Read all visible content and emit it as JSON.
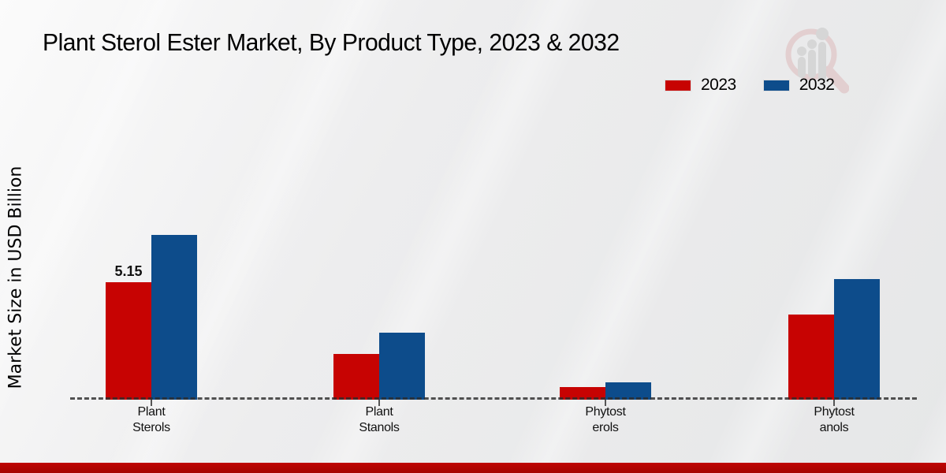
{
  "title": "Plant Sterol Ester Market, By Product Type, 2023 & 2032",
  "y_axis_label": "Market Size in USD Billion",
  "colors": {
    "bar_2023": "#c70302",
    "bar_2032": "#0d4c8b",
    "footer_accent": "#b00301",
    "baseline": "#2d2d2d",
    "watermark_pink": "#debaba",
    "watermark_gray": "#c6c6c6"
  },
  "watermark_icon": "magnifier-bar-chart-logo",
  "chart_data": {
    "type": "bar",
    "title": "Plant Sterol Ester Market, By Product Type, 2023 & 2032",
    "xlabel": "",
    "ylabel": "Market Size in USD Billion",
    "ylim": [
      0,
      8
    ],
    "grid": false,
    "legend_position": "top-right",
    "baseline_style": "dashed",
    "categories": [
      {
        "label": "Plant Sterols",
        "line1": "Plant",
        "line2": "Sterols"
      },
      {
        "label": "Plant Stanols",
        "line1": "Plant",
        "line2": "Stanols"
      },
      {
        "label": "Phytosterols",
        "line1": "Phytost",
        "line2": "erols"
      },
      {
        "label": "Phytostanols",
        "line1": "Phytost",
        "line2": "anols"
      }
    ],
    "series": [
      {
        "name": "2023",
        "color": "#c70302",
        "values": [
          5.15,
          2.0,
          0.55,
          3.73
        ],
        "value_labels": [
          "5.15",
          "",
          "",
          ""
        ]
      },
      {
        "name": "2032",
        "color": "#0d4c8b",
        "values": [
          7.22,
          2.95,
          0.76,
          5.29
        ],
        "value_labels": [
          "",
          "",
          "",
          ""
        ]
      }
    ]
  }
}
